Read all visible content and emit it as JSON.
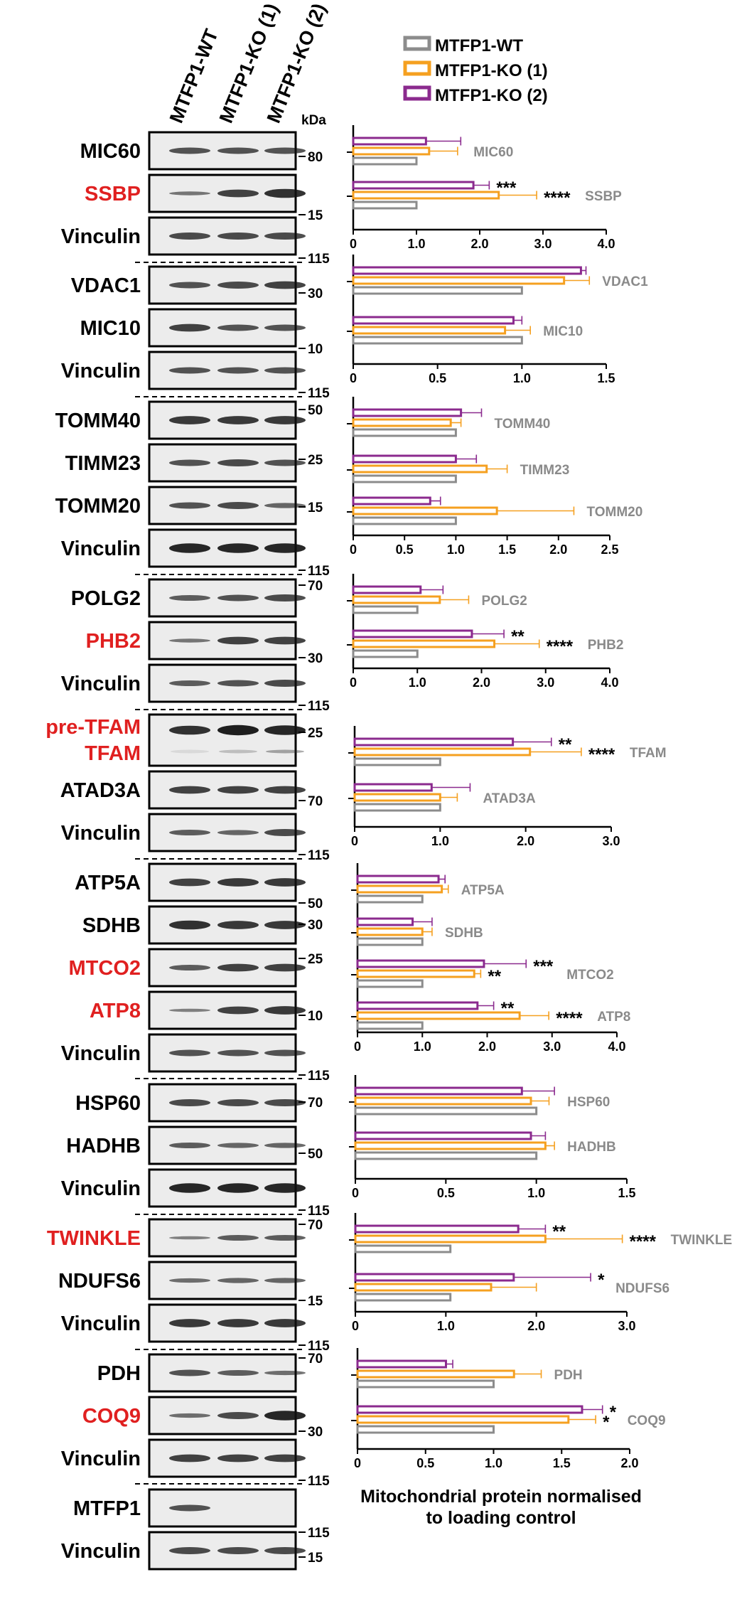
{
  "column_labels": [
    "MTFP1-WT",
    "MTFP1-KO (1)",
    "MTFP1-KO (2)"
  ],
  "kda_label": "kDa",
  "legend": [
    {
      "name": "MTFP1-WT",
      "color": "#8c8c8c"
    },
    {
      "name": "MTFP1-KO (1)",
      "color": "#f5a020"
    },
    {
      "name": "MTFP1-KO (2)",
      "color": "#8b2a8e"
    }
  ],
  "caption": [
    "Mitochondrial protein normalised",
    "to loading control"
  ],
  "colors": {
    "black": "#000000",
    "red": "#e02020",
    "gray": "#8a8a8a"
  },
  "blots": [
    {
      "label": "MIC60",
      "red": false,
      "pattern": [
        1,
        1,
        1
      ]
    },
    {
      "label": "SSBP",
      "red": true,
      "pattern": [
        0.6,
        1.2,
        1.4
      ]
    },
    {
      "label": "Vinculin",
      "red": false,
      "pattern": [
        1.1,
        1.1,
        1.1
      ]
    },
    {
      "label": "VDAC1",
      "red": false,
      "pattern": [
        1,
        1.1,
        1.2
      ]
    },
    {
      "label": "MIC10",
      "red": false,
      "pattern": [
        1.2,
        1,
        1
      ]
    },
    {
      "label": "Vinculin",
      "red": false,
      "pattern": [
        1,
        1,
        1
      ]
    },
    {
      "label": "TOMM40",
      "red": false,
      "pattern": [
        1.3,
        1.3,
        1.3
      ]
    },
    {
      "label": "TIMM23",
      "red": false,
      "pattern": [
        1,
        1.1,
        1
      ]
    },
    {
      "label": "TOMM20",
      "red": false,
      "pattern": [
        1,
        1.1,
        0.8
      ]
    },
    {
      "label": "Vinculin",
      "red": false,
      "pattern": [
        1.5,
        1.5,
        1.5
      ]
    },
    {
      "label": "POLG2",
      "red": false,
      "pattern": [
        0.9,
        1,
        1.1
      ]
    },
    {
      "label": "PHB2",
      "red": true,
      "pattern": [
        0.6,
        1.2,
        1.2
      ]
    },
    {
      "label": "Vinculin",
      "red": false,
      "pattern": [
        0.9,
        1,
        1.1
      ]
    },
    {
      "label": "pre-TFAM",
      "red": true,
      "label2": "TFAM",
      "pattern": [
        1.4,
        1.6,
        1.5
      ]
    },
    {
      "label": "ATAD3A",
      "red": false,
      "pattern": [
        1.2,
        1.2,
        1.2
      ]
    },
    {
      "label": "Vinculin",
      "red": false,
      "pattern": [
        0.9,
        0.8,
        1.1
      ]
    },
    {
      "label": "ATP5A",
      "red": false,
      "pattern": [
        1.2,
        1.3,
        1.3
      ]
    },
    {
      "label": "SDHB",
      "red": false,
      "pattern": [
        1.4,
        1.3,
        1.3
      ]
    },
    {
      "label": "MTCO2",
      "red": true,
      "pattern": [
        0.9,
        1.2,
        1.2
      ]
    },
    {
      "label": "ATP8",
      "red": true,
      "pattern": [
        0.5,
        1.2,
        1.3
      ]
    },
    {
      "label": "Vinculin",
      "red": false,
      "pattern": [
        1,
        1,
        1
      ]
    },
    {
      "label": "HSP60",
      "red": false,
      "pattern": [
        1.1,
        1.1,
        1.1
      ]
    },
    {
      "label": "HADHB",
      "red": false,
      "pattern": [
        0.9,
        0.8,
        0.8
      ]
    },
    {
      "label": "Vinculin",
      "red": false,
      "pattern": [
        1.5,
        1.5,
        1.5
      ]
    },
    {
      "label": "TWINKLE",
      "red": true,
      "pattern": [
        0.5,
        0.9,
        0.9
      ]
    },
    {
      "label": "NDUFS6",
      "red": false,
      "pattern": [
        0.7,
        0.8,
        0.8
      ]
    },
    {
      "label": "Vinculin",
      "red": false,
      "pattern": [
        1.3,
        1.3,
        1.3
      ]
    },
    {
      "label": "PDH",
      "red": false,
      "pattern": [
        1,
        0.9,
        0.7
      ]
    },
    {
      "label": "COQ9",
      "red": true,
      "pattern": [
        0.7,
        1.1,
        1.5
      ]
    },
    {
      "label": "Vinculin",
      "red": false,
      "pattern": [
        1.2,
        1.2,
        1.2
      ]
    },
    {
      "label": "MTFP1",
      "red": false,
      "pattern": [
        1,
        0,
        0
      ]
    },
    {
      "label": "Vinculin",
      "red": false,
      "pattern": [
        1.1,
        1.1,
        1.1
      ]
    }
  ],
  "kda_markers": [
    "80",
    "15",
    "115",
    "30",
    "10",
    "115",
    "50",
    "25",
    "15",
    "115",
    "70",
    "30",
    "115",
    "25",
    "70",
    "115",
    "50",
    "30",
    "25",
    "10",
    "115",
    "70",
    "50",
    "115",
    "70",
    "15",
    "115",
    "70",
    "30",
    "115",
    "15",
    "115"
  ],
  "chart_data": [
    {
      "type": "bar",
      "title": "",
      "xlim": [
        0,
        4
      ],
      "xticks": [
        "0",
        "1.0",
        "2.0",
        "3.0",
        "4.0"
      ],
      "categories": [
        "MIC60",
        "SSBP"
      ],
      "series": [
        {
          "name": "MTFP1-WT",
          "values": [
            1.0,
            1.0
          ],
          "errors": [
            0,
            0
          ]
        },
        {
          "name": "MTFP1-KO (1)",
          "values": [
            1.2,
            2.3
          ],
          "errors": [
            0.45,
            0.6
          ]
        },
        {
          "name": "MTFP1-KO (2)",
          "values": [
            1.15,
            1.9
          ],
          "errors": [
            0.55,
            0.25
          ]
        }
      ],
      "annotations": [
        {
          "category": "SSBP",
          "series": "MTFP1-KO (2)",
          "text": "***"
        },
        {
          "category": "SSBP",
          "series": "MTFP1-KO (1)",
          "text": "****"
        }
      ]
    },
    {
      "type": "bar",
      "xlim": [
        0,
        1.5
      ],
      "xticks": [
        "0",
        "0.5",
        "1.0",
        "1.5"
      ],
      "categories": [
        "VDAC1",
        "MIC10"
      ],
      "series": [
        {
          "name": "MTFP1-WT",
          "values": [
            1.0,
            1.0
          ],
          "errors": [
            0,
            0
          ]
        },
        {
          "name": "MTFP1-KO (1)",
          "values": [
            1.25,
            0.9
          ],
          "errors": [
            0.15,
            0.15
          ]
        },
        {
          "name": "MTFP1-KO (2)",
          "values": [
            1.35,
            0.95
          ],
          "errors": [
            0.03,
            0.05
          ]
        }
      ],
      "annotations": []
    },
    {
      "type": "bar",
      "xlim": [
        0,
        2.5
      ],
      "xticks": [
        "0",
        "0.5",
        "1.0",
        "1.5",
        "2.0",
        "2.5"
      ],
      "categories": [
        "TOMM40",
        "TIMM23",
        "TOMM20"
      ],
      "series": [
        {
          "name": "MTFP1-WT",
          "values": [
            1.0,
            1.0,
            1.0
          ],
          "errors": [
            0,
            0,
            0
          ]
        },
        {
          "name": "MTFP1-KO (1)",
          "values": [
            0.95,
            1.3,
            1.4
          ],
          "errors": [
            0.1,
            0.2,
            0.75
          ]
        },
        {
          "name": "MTFP1-KO (2)",
          "values": [
            1.05,
            1.0,
            0.75
          ],
          "errors": [
            0.2,
            0.2,
            0.1
          ]
        }
      ],
      "annotations": []
    },
    {
      "type": "bar",
      "xlim": [
        0,
        4
      ],
      "xticks": [
        "0",
        "1.0",
        "2.0",
        "3.0",
        "4.0"
      ],
      "categories": [
        "POLG2",
        "PHB2"
      ],
      "series": [
        {
          "name": "MTFP1-WT",
          "values": [
            1.0,
            1.0
          ],
          "errors": [
            0,
            0
          ]
        },
        {
          "name": "MTFP1-KO (1)",
          "values": [
            1.35,
            2.2
          ],
          "errors": [
            0.45,
            0.7
          ]
        },
        {
          "name": "MTFP1-KO (2)",
          "values": [
            1.05,
            1.85
          ],
          "errors": [
            0.35,
            0.5
          ]
        }
      ],
      "annotations": [
        {
          "category": "PHB2",
          "series": "MTFP1-KO (2)",
          "text": "**"
        },
        {
          "category": "PHB2",
          "series": "MTFP1-KO (1)",
          "text": "****"
        }
      ]
    },
    {
      "type": "bar",
      "xlim": [
        0,
        3
      ],
      "xticks": [
        "0",
        "1.0",
        "2.0",
        "3.0"
      ],
      "categories": [
        "TFAM",
        "ATAD3A"
      ],
      "series": [
        {
          "name": "MTFP1-WT",
          "values": [
            1.0,
            1.0
          ],
          "errors": [
            0,
            0
          ]
        },
        {
          "name": "MTFP1-KO (1)",
          "values": [
            2.05,
            1.0
          ],
          "errors": [
            0.6,
            0.2
          ]
        },
        {
          "name": "MTFP1-KO (2)",
          "values": [
            1.85,
            0.9
          ],
          "errors": [
            0.45,
            0.45
          ]
        }
      ],
      "annotations": [
        {
          "category": "TFAM",
          "series": "MTFP1-KO (2)",
          "text": "**"
        },
        {
          "category": "TFAM",
          "series": "MTFP1-KO (1)",
          "text": "****"
        }
      ]
    },
    {
      "type": "bar",
      "xlim": [
        0,
        4
      ],
      "xticks": [
        "0",
        "1.0",
        "2.0",
        "3.0",
        "4.0"
      ],
      "categories": [
        "ATP5A",
        "SDHB",
        "MTCO2",
        "ATP8"
      ],
      "series": [
        {
          "name": "MTFP1-WT",
          "values": [
            1.0,
            1.0,
            1.0,
            1.0
          ],
          "errors": [
            0,
            0,
            0,
            0
          ]
        },
        {
          "name": "MTFP1-KO (1)",
          "values": [
            1.3,
            1.0,
            1.8,
            2.5
          ],
          "errors": [
            0.1,
            0.15,
            0.1,
            0.45
          ]
        },
        {
          "name": "MTFP1-KO (2)",
          "values": [
            1.25,
            0.85,
            1.95,
            1.85
          ],
          "errors": [
            0.1,
            0.3,
            0.65,
            0.25
          ]
        }
      ],
      "annotations": [
        {
          "category": "MTCO2",
          "series": "MTFP1-KO (2)",
          "text": "***"
        },
        {
          "category": "MTCO2",
          "series": "MTFP1-KO (1)",
          "text": "**"
        },
        {
          "category": "ATP8",
          "series": "MTFP1-KO (2)",
          "text": "**"
        },
        {
          "category": "ATP8",
          "series": "MTFP1-KO (1)",
          "text": "****"
        }
      ]
    },
    {
      "type": "bar",
      "xlim": [
        0,
        1.5
      ],
      "xticks": [
        "0",
        "0.5",
        "1.0",
        "1.5"
      ],
      "categories": [
        "HSP60",
        "HADHB"
      ],
      "series": [
        {
          "name": "MTFP1-WT",
          "values": [
            1.0,
            1.0
          ],
          "errors": [
            0,
            0
          ]
        },
        {
          "name": "MTFP1-KO (1)",
          "values": [
            0.97,
            1.05
          ],
          "errors": [
            0.1,
            0.05
          ]
        },
        {
          "name": "MTFP1-KO (2)",
          "values": [
            0.92,
            0.97
          ],
          "errors": [
            0.18,
            0.08
          ]
        }
      ],
      "annotations": []
    },
    {
      "type": "bar",
      "xlim": [
        0,
        3
      ],
      "xticks": [
        "0",
        "1.0",
        "2.0",
        "3.0"
      ],
      "categories": [
        "TWINKLE",
        "NDUFS6"
      ],
      "series": [
        {
          "name": "MTFP1-WT",
          "values": [
            1.05,
            1.05
          ],
          "errors": [
            0,
            0
          ]
        },
        {
          "name": "MTFP1-KO (1)",
          "values": [
            2.1,
            1.5
          ],
          "errors": [
            0.85,
            0.5
          ]
        },
        {
          "name": "MTFP1-KO (2)",
          "values": [
            1.8,
            1.75
          ],
          "errors": [
            0.3,
            0.85
          ]
        }
      ],
      "annotations": [
        {
          "category": "TWINKLE",
          "series": "MTFP1-KO (2)",
          "text": "**"
        },
        {
          "category": "TWINKLE",
          "series": "MTFP1-KO (1)",
          "text": "****"
        },
        {
          "category": "NDUFS6",
          "series": "MTFP1-KO (2)",
          "text": "*"
        }
      ]
    },
    {
      "type": "bar",
      "xlim": [
        0,
        2
      ],
      "xticks": [
        "0",
        "0.5",
        "1.0",
        "1.5",
        "2.0"
      ],
      "categories": [
        "PDH",
        "COQ9"
      ],
      "series": [
        {
          "name": "MTFP1-WT",
          "values": [
            1.0,
            1.0
          ],
          "errors": [
            0,
            0
          ]
        },
        {
          "name": "MTFP1-KO (1)",
          "values": [
            1.15,
            1.55
          ],
          "errors": [
            0.2,
            0.2
          ]
        },
        {
          "name": "MTFP1-KO (2)",
          "values": [
            0.65,
            1.65
          ],
          "errors": [
            0.05,
            0.15
          ]
        }
      ],
      "annotations": [
        {
          "category": "COQ9",
          "series": "MTFP1-KO (2)",
          "text": "*"
        },
        {
          "category": "COQ9",
          "series": "MTFP1-KO (1)",
          "text": "*"
        }
      ]
    }
  ]
}
